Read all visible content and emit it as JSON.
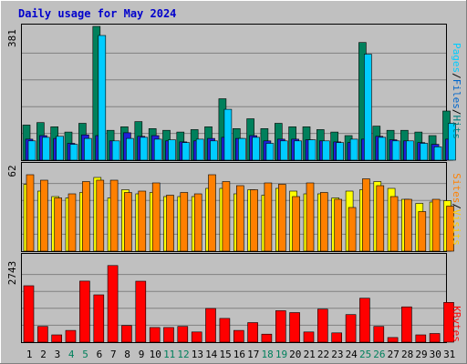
{
  "chart_data": [
    {
      "type": "bar",
      "title": "Daily usage for May 2024",
      "categories": [
        "1",
        "2",
        "3",
        "4",
        "5",
        "6",
        "7",
        "8",
        "9",
        "10",
        "11",
        "12",
        "13",
        "14",
        "15",
        "16",
        "17",
        "18",
        "19",
        "20",
        "21",
        "22",
        "23",
        "24",
        "25",
        "26",
        "27",
        "28",
        "29",
        "30",
        "31"
      ],
      "weekend_days": [
        "4",
        "5",
        "11",
        "12",
        "18",
        "19",
        "25",
        "26"
      ],
      "ymax_label": "381",
      "ylim": [
        0,
        381
      ],
      "right_label": {
        "parts": [
          "Pages",
          "/",
          "Files",
          "/",
          "Hits"
        ],
        "colors": [
          "#00ccff",
          "#000000",
          "#0066cc",
          "#000000",
          "#008080"
        ]
      },
      "series": [
        {
          "name": "Hits",
          "color": "#00805c",
          "values": [
            100,
            107,
            95,
            80,
            105,
            381,
            85,
            95,
            110,
            90,
            85,
            80,
            87,
            95,
            175,
            90,
            118,
            90,
            105,
            95,
            95,
            87,
            80,
            70,
            335,
            97,
            85,
            85,
            80,
            70,
            140
          ]
        },
        {
          "name": "Files",
          "color": "#2020d8",
          "values": [
            60,
            70,
            62,
            48,
            72,
            70,
            55,
            78,
            68,
            70,
            55,
            52,
            55,
            62,
            65,
            62,
            70,
            55,
            60,
            60,
            58,
            55,
            52,
            50,
            60,
            68,
            58,
            55,
            50,
            45,
            60
          ]
        },
        {
          "name": "Pages",
          "color": "#00ccff",
          "values": [
            55,
            65,
            68,
            45,
            62,
            355,
            55,
            62,
            65,
            60,
            58,
            50,
            60,
            55,
            145,
            62,
            65,
            48,
            55,
            55,
            58,
            55,
            50,
            60,
            302,
            65,
            55,
            55,
            48,
            38,
            105
          ]
        }
      ]
    },
    {
      "type": "bar",
      "ymax_label": "62",
      "ylim": [
        0,
        62
      ],
      "right_label": {
        "parts": [
          "Sites",
          "/",
          "Visits"
        ],
        "colors": [
          "#ff8000",
          "#000000",
          "#ffcc00"
        ]
      },
      "series": [
        {
          "name": "Visits",
          "color": "#ffff00",
          "values": [
            49,
            44,
            40,
            39,
            43,
            54,
            39,
            45,
            42,
            43,
            40,
            40,
            40,
            46,
            46,
            42,
            45,
            41,
            46,
            44,
            42,
            42,
            39,
            44,
            45,
            51,
            46,
            38,
            35,
            36,
            37
          ]
        },
        {
          "name": "Sites",
          "color": "#ff8000",
          "values": [
            56,
            52,
            39,
            42,
            51,
            52,
            52,
            43,
            44,
            50,
            41,
            43,
            42,
            56,
            51,
            48,
            45,
            50,
            49,
            40,
            50,
            43,
            38,
            32,
            53,
            48,
            40,
            38,
            29,
            38,
            33
          ]
        }
      ]
    },
    {
      "type": "bar",
      "ymax_label": "2743",
      "ylim": [
        0,
        2743
      ],
      "right_label": {
        "parts": [
          "KBytes"
        ],
        "colors": [
          "#ff0000"
        ]
      },
      "series": [
        {
          "name": "KBytes",
          "color": "#ff0000",
          "values": [
            1830,
            510,
            235,
            380,
            1980,
            1535,
            2483,
            540,
            1975,
            475,
            475,
            510,
            330,
            1090,
            770,
            380,
            635,
            260,
            1020,
            960,
            330,
            1070,
            300,
            895,
            1425,
            510,
            150,
            1145,
            235,
            280,
            1290
          ]
        }
      ]
    }
  ]
}
